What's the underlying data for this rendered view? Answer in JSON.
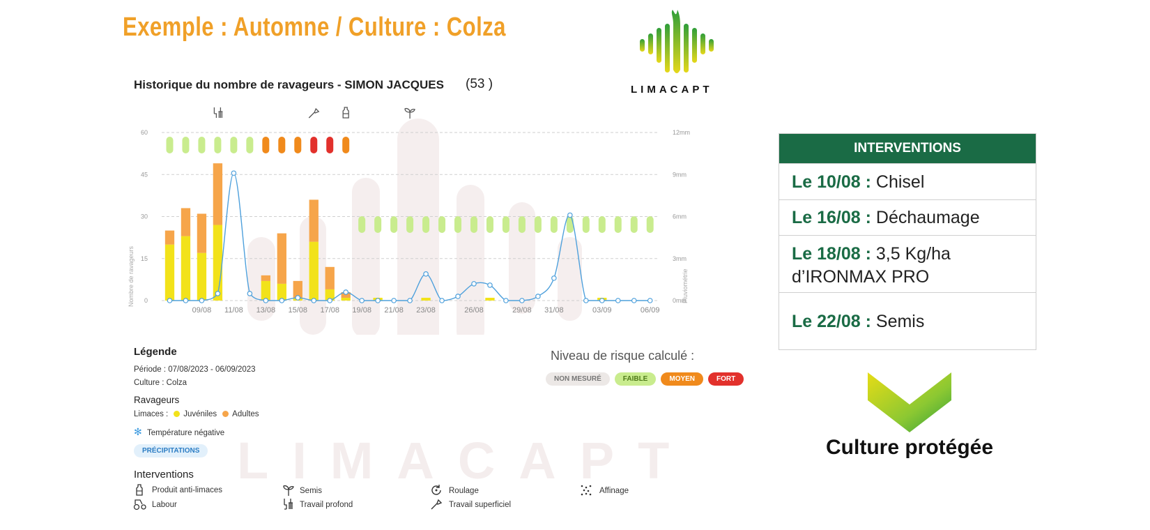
{
  "header": {
    "title": "Exemple : Automne / Culture : Colza"
  },
  "brand": {
    "name": "LIMACAPT",
    "logo_icon": "snail-soundwave-logo",
    "watermark": "LIMACAPT"
  },
  "chart_panel": {
    "title": "Historique du nombre de ravageurs - SIMON JACQUES",
    "count": "(53 )"
  },
  "chart_data": {
    "type": "bar",
    "title": "Historique du nombre de ravageurs - SIMON JACQUES",
    "ylabel": "Nombre de ravageurs",
    "y2label": "Pluviométrie",
    "ylim": [
      0,
      60
    ],
    "yticks": [
      "0",
      "15",
      "30",
      "45",
      "60"
    ],
    "y2ticks": [
      "0mm",
      "3mm",
      "6mm",
      "9mm",
      "12mm"
    ],
    "y2lim": [
      0,
      12
    ],
    "xtick_labels": [
      "09/08",
      "11/08",
      "13/08",
      "15/08",
      "17/08",
      "19/08",
      "21/08",
      "23/08",
      "26/08",
      "29/08",
      "31/08",
      "03/09",
      "06/09"
    ],
    "days": 31,
    "xtick_day_index": [
      2,
      4,
      6,
      8,
      10,
      12,
      14,
      16,
      19,
      22,
      24,
      27,
      30
    ],
    "series": [
      {
        "name": "Juvéniles",
        "color": "#f2e21a",
        "values": [
          20,
          23,
          17,
          27,
          0,
          0,
          7,
          6,
          1,
          21,
          4,
          1,
          0,
          1,
          0,
          0,
          1,
          0,
          0,
          0,
          1,
          0,
          0,
          0,
          0,
          0,
          0,
          1,
          0,
          0,
          0
        ]
      },
      {
        "name": "Adultes",
        "color": "#f6a54a",
        "values": [
          5,
          10,
          14,
          22,
          0,
          0,
          2,
          18,
          6,
          15,
          8,
          2,
          0,
          0,
          0,
          0,
          0,
          0,
          0,
          0,
          0,
          0,
          0,
          0,
          0,
          0,
          0,
          0,
          0,
          0,
          0
        ]
      }
    ],
    "precipitation": {
      "color": "#4ea0dc",
      "unit": "mm",
      "values": [
        0,
        0,
        0,
        0.5,
        9.1,
        0.5,
        0,
        0,
        0.2,
        0,
        0,
        0.6,
        0,
        0,
        0,
        0,
        1.9,
        0,
        0.3,
        1.2,
        1.1,
        0,
        0,
        0.3,
        1.6,
        6.1,
        0,
        0,
        0,
        0,
        0
      ]
    },
    "risk": [
      {
        "level": "faible",
        "from_day": 0,
        "to_day": 5
      },
      {
        "level": "moyen",
        "from_day": 6,
        "to_day": 8
      },
      {
        "level": "fort",
        "from_day": 9,
        "to_day": 10
      },
      {
        "level": "moyen",
        "from_day": 11,
        "to_day": 11
      },
      {
        "level": "faible",
        "from_day": 12,
        "to_day": 30
      }
    ],
    "intervention_markers": [
      {
        "day": 3,
        "icon": "travail-profond-icon"
      },
      {
        "day": 9,
        "icon": "travail-superficiel-icon"
      },
      {
        "day": 11,
        "icon": "produit-anti-limaces-icon"
      },
      {
        "day": 15,
        "icon": "semis-icon"
      }
    ]
  },
  "legend": {
    "title": "Légende",
    "period": "Période : 07/08/2023 - 06/09/2023",
    "culture": "Culture : Colza",
    "pests_title": "Ravageurs",
    "slugs_label": "Limaces :",
    "juveniles": "Juvéniles",
    "adults": "Adultes",
    "negative_temp": "Température négative",
    "precip_badge": "PRÉCIPITATIONS",
    "interventions_title": "Interventions",
    "items": {
      "anti_slug": "Produit anti-limaces",
      "semis": "Semis",
      "roulage": "Roulage",
      "affinage": "Affinage",
      "labour": "Labour",
      "travail_profond": "Travail profond",
      "travail_superficiel": "Travail superficiel"
    }
  },
  "risk_legend": {
    "title": "Niveau de risque calculé :",
    "levels": [
      {
        "label": "NON MESURÉ",
        "bg": "#ece8e6",
        "fg": "#777777"
      },
      {
        "label": "FAIBLE",
        "bg": "#c9ec8e",
        "fg": "#4f7a1a"
      },
      {
        "label": "MOYEN",
        "bg": "#f08a1c",
        "fg": "#ffffff"
      },
      {
        "label": "FORT",
        "bg": "#e2312c",
        "fg": "#ffffff"
      }
    ]
  },
  "interventions_table": {
    "header": "INTERVENTIONS",
    "rows": [
      {
        "date": "Le 10/08 :",
        "text": "Chisel"
      },
      {
        "date": "Le 16/08 :",
        "text": "Déchaumage"
      },
      {
        "date": "Le 18/08 :",
        "text": "3,5 Kg/ha",
        "text2": "d’IRONMAX PRO"
      },
      {
        "date": "Le 22/08 :",
        "text": "Semis"
      }
    ]
  },
  "result": {
    "label": "Culture protégée",
    "icon": "check-chevron-icon"
  },
  "colors": {
    "accent_orange": "#f0a028",
    "table_green": "#1a6b45",
    "faible": "#c9ec8e",
    "moyen": "#f08a1c",
    "fort": "#e2312c"
  }
}
